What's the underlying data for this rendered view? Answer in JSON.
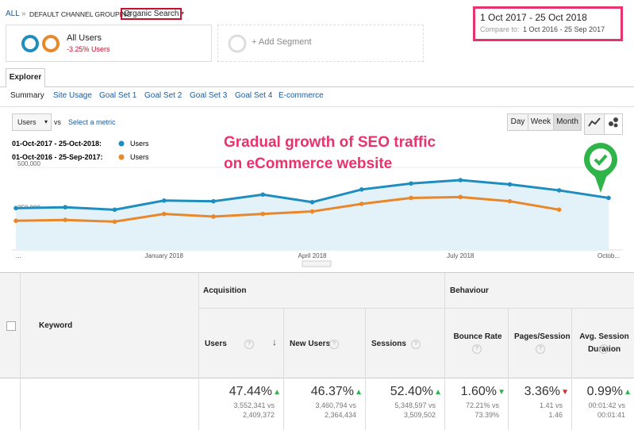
{
  "breadcrumb": {
    "all": "ALL",
    "separator": "»",
    "group": "DEFAULT CHANNEL GROUPING",
    "selected": "Organic Search"
  },
  "date_range": {
    "main": "1 Oct 2017 - 25 Oct 2018",
    "compare_label": "Compare to:",
    "compare": "1 Oct 2016 - 25 Sep 2017"
  },
  "segment": {
    "name": "All Users",
    "change": "-3.25% Users"
  },
  "add_segment": "+ Add Segment",
  "tab": "Explorer",
  "subtabs": [
    "Summary",
    "Site Usage",
    "Goal Set 1",
    "Goal Set 2",
    "Goal Set 3",
    "Goal Set 4",
    "E-commerce"
  ],
  "metric_select": "Users",
  "vs": "vs",
  "select_metric": "Select a metric",
  "granularity": [
    "Day",
    "Week",
    "Month"
  ],
  "granularity_active": 2,
  "annotation": [
    "Gradual growth of SEO traffic",
    "on eCommerce website"
  ],
  "chart_data": {
    "type": "line",
    "categories": [
      "...",
      null,
      null,
      "January 2018",
      null,
      null,
      "April 2018",
      null,
      null,
      "July 2018",
      null,
      null,
      "Octob..."
    ],
    "series": [
      {
        "period": "01-Oct-2017 - 25-Oct-2018:",
        "name": "Users",
        "color": "#1f8dbd",
        "values": [
          269000,
          274000,
          260000,
          312000,
          308000,
          346000,
          303000,
          375000,
          409000,
          428000,
          404000,
          370000,
          327000
        ]
      },
      {
        "period": "01-Oct-2016 - 25-Sep-2017:",
        "name": "Users",
        "color": "#e8882b",
        "values": [
          197000,
          202000,
          192000,
          236000,
          221000,
          236000,
          250000,
          293000,
          327000,
          332000,
          308000,
          260000,
          null
        ]
      }
    ],
    "ylim": [
      0,
      550000
    ],
    "yticks": [
      {
        "value": 250000,
        "label": "250,000"
      },
      {
        "value": 500000,
        "label": "500,000"
      }
    ]
  },
  "table": {
    "keyword": "Keyword",
    "groups": [
      "Acquisition",
      "Behaviour"
    ],
    "columns": [
      {
        "name": "Users",
        "change": "47.44%",
        "trend": "up",
        "good": true,
        "current": "3,552,341",
        "vs": "vs",
        "previous": "2,409,372"
      },
      {
        "name": "New Users",
        "change": "46.37%",
        "trend": "up",
        "good": true,
        "current": "3,460,794",
        "vs": "vs",
        "previous": "2,364,434"
      },
      {
        "name": "Sessions",
        "change": "52.40%",
        "trend": "up",
        "good": true,
        "current": "5,348,597",
        "vs": "vs",
        "previous": "3,509,502"
      },
      {
        "name": "Bounce Rate",
        "change": "1.60%",
        "trend": "down",
        "good": true,
        "current": "72.21%",
        "vs": "vs",
        "previous": "73.39%"
      },
      {
        "name": "Pages/Session",
        "change": "3.36%",
        "trend": "down",
        "good": false,
        "current": "1.41",
        "vs": "vs",
        "previous": "1.46"
      },
      {
        "name": "Avg. Session Duration",
        "change": "0.99%",
        "trend": "up",
        "good": true,
        "current": "00:01:42",
        "vs": "vs",
        "previous": "00:01:41"
      }
    ]
  }
}
